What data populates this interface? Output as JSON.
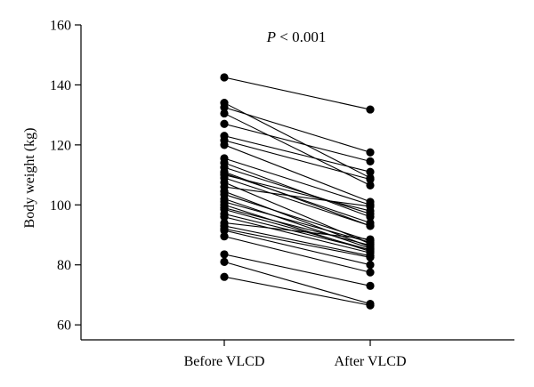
{
  "chart_data": {
    "type": "line",
    "categories": [
      "Before VLCD",
      "After VLCD"
    ],
    "ylabel": "Body weight (kg)",
    "xlabel": "",
    "ylim": [
      55,
      160
    ],
    "yticks": [
      60,
      80,
      100,
      120,
      140,
      160
    ],
    "annotation": {
      "italic": "P",
      "rest": " < 0.001"
    },
    "grid": false,
    "marker_color": "#000000",
    "pairs": [
      [
        142.5,
        131.8
      ],
      [
        134.0,
        109.0
      ],
      [
        132.5,
        117.5
      ],
      [
        130.5,
        106.5
      ],
      [
        127.0,
        114.5
      ],
      [
        123.0,
        111.0
      ],
      [
        121.5,
        108.5
      ],
      [
        120.0,
        101.0
      ],
      [
        115.5,
        100.0
      ],
      [
        114.0,
        96.0
      ],
      [
        112.5,
        97.0
      ],
      [
        111.0,
        93.0
      ],
      [
        110.5,
        94.0
      ],
      [
        110.0,
        98.0
      ],
      [
        109.0,
        93.0
      ],
      [
        107.5,
        87.0
      ],
      [
        106.0,
        99.5
      ],
      [
        104.5,
        86.0
      ],
      [
        103.5,
        88.0
      ],
      [
        102.0,
        85.5
      ],
      [
        101.0,
        87.5
      ],
      [
        100.0,
        84.5
      ],
      [
        99.0,
        86.5
      ],
      [
        98.5,
        85.0
      ],
      [
        97.0,
        85.0
      ],
      [
        96.0,
        84.0
      ],
      [
        94.0,
        88.5
      ],
      [
        93.0,
        83.0
      ],
      [
        92.0,
        82.5
      ],
      [
        91.5,
        80.0
      ],
      [
        89.5,
        77.5
      ],
      [
        83.5,
        73.0
      ],
      [
        81.0,
        67.0
      ],
      [
        76.0,
        66.5
      ]
    ]
  }
}
